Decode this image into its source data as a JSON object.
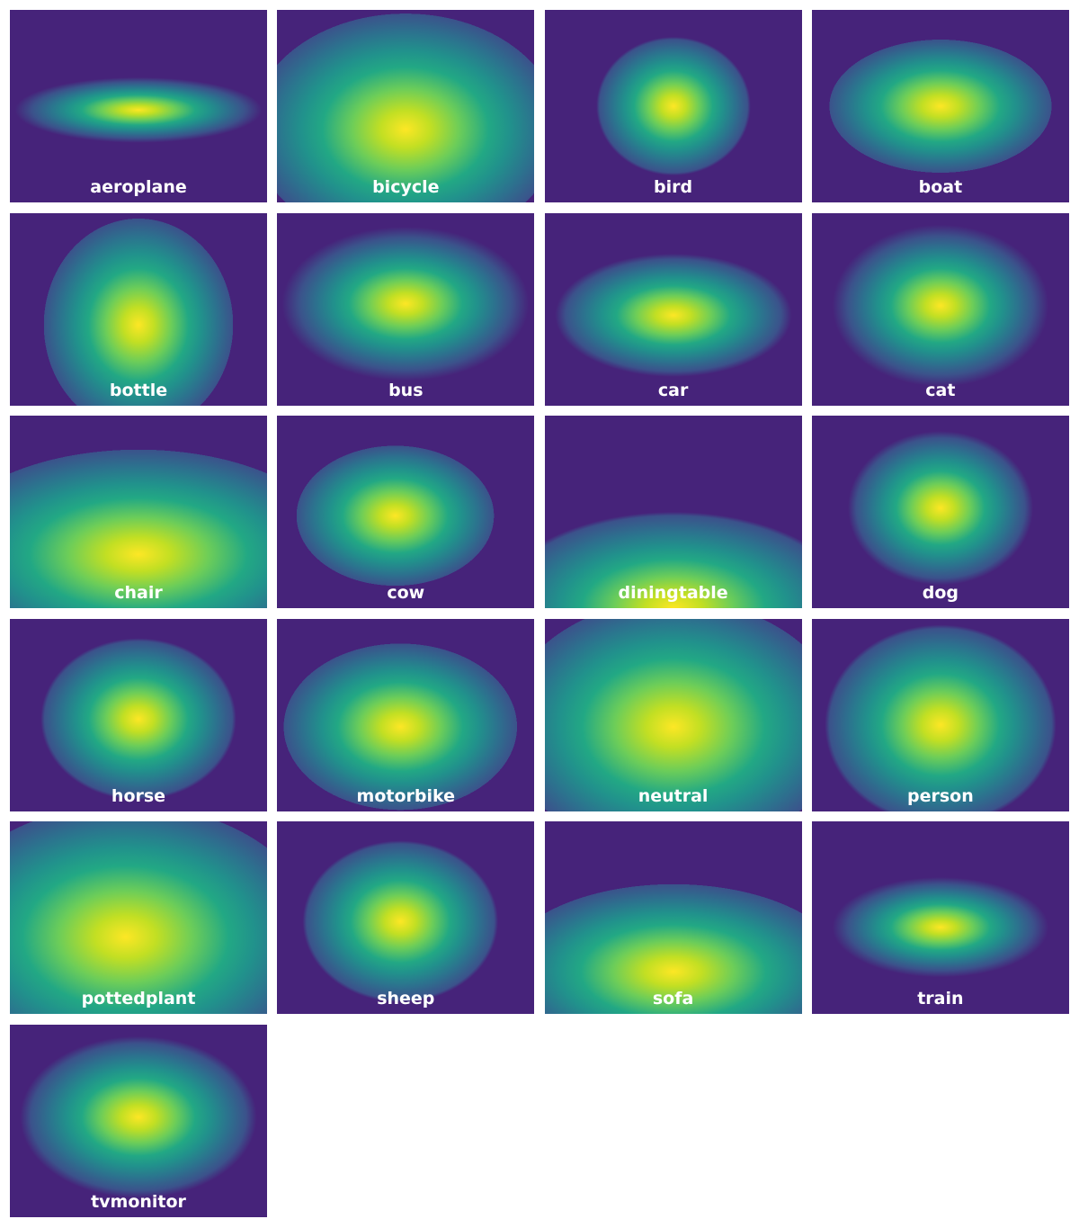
{
  "tiles": [
    {
      "label": "aeroplane"
    },
    {
      "label": "bicycle"
    },
    {
      "label": "bird"
    },
    {
      "label": "boat"
    },
    {
      "label": "bottle"
    },
    {
      "label": "bus"
    },
    {
      "label": "car"
    },
    {
      "label": "cat"
    },
    {
      "label": "chair"
    },
    {
      "label": "cow"
    },
    {
      "label": "diningtable"
    },
    {
      "label": "dog"
    },
    {
      "label": "horse"
    },
    {
      "label": "motorbike"
    },
    {
      "label": "neutral"
    },
    {
      "label": "person"
    },
    {
      "label": "pottedplant"
    },
    {
      "label": "sheep"
    },
    {
      "label": "sofa"
    },
    {
      "label": "train"
    },
    {
      "label": "tvmonitor"
    }
  ]
}
